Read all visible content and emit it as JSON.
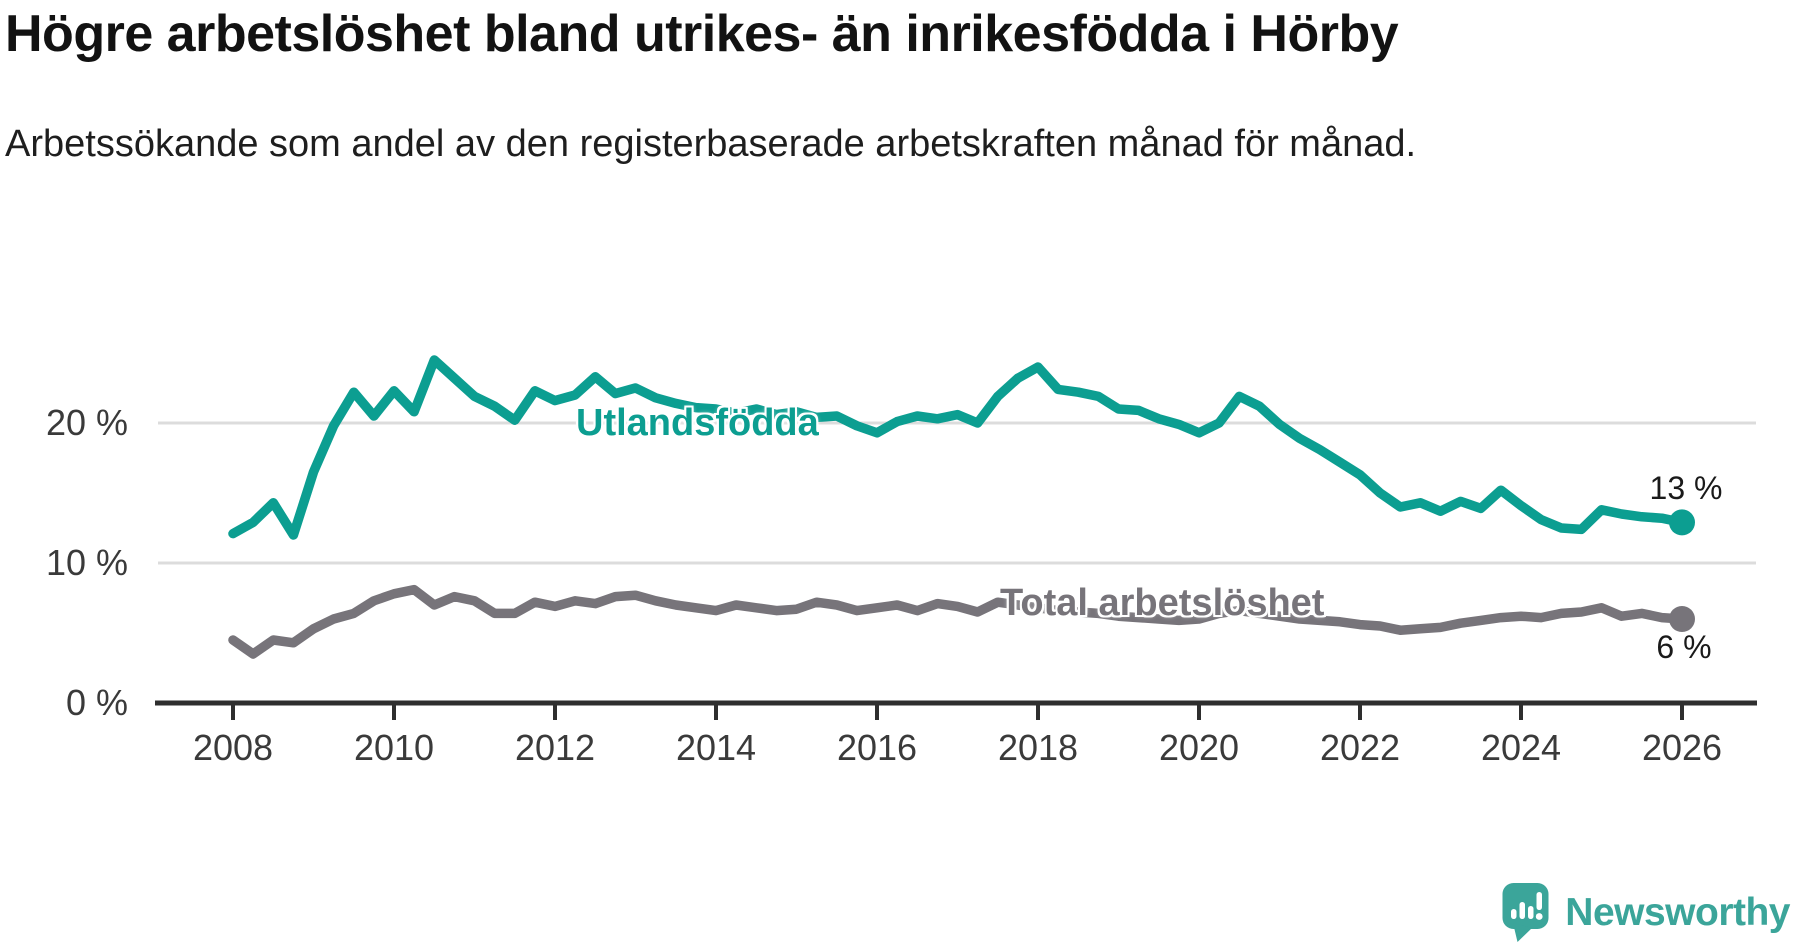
{
  "chart_data": {
    "type": "line",
    "title": "Högre arbetslöshet bland utrikes- än inrikesfödda i Hörby",
    "subtitle": "Arbetssökande som andel av den registerbaserade arbetskraften månad för månad.",
    "xlim": [
      2008,
      2026
    ],
    "ylim": [
      0,
      26.5
    ],
    "grid": "horizontal",
    "legend": "inline-labels-on-lines",
    "x_ticks": [
      2008,
      2010,
      2012,
      2014,
      2016,
      2018,
      2020,
      2022,
      2024,
      2026
    ],
    "y_ticks": [
      {
        "value": 20,
        "label": "20 %"
      },
      {
        "value": 10,
        "label": "10 %"
      },
      {
        "value": 0,
        "label": "0 %"
      }
    ],
    "x": [
      2008.0,
      2008.25,
      2008.5,
      2008.75,
      2009.0,
      2009.25,
      2009.5,
      2009.75,
      2010.0,
      2010.25,
      2010.5,
      2010.75,
      2011.0,
      2011.25,
      2011.5,
      2011.75,
      2012.0,
      2012.25,
      2012.5,
      2012.75,
      2013.0,
      2013.25,
      2013.5,
      2013.75,
      2014.0,
      2014.25,
      2014.5,
      2014.75,
      2015.0,
      2015.25,
      2015.5,
      2015.75,
      2016.0,
      2016.25,
      2016.5,
      2016.75,
      2017.0,
      2017.25,
      2017.5,
      2017.75,
      2018.0,
      2018.25,
      2018.5,
      2018.75,
      2019.0,
      2019.25,
      2019.5,
      2019.75,
      2020.0,
      2020.25,
      2020.5,
      2020.75,
      2021.0,
      2021.25,
      2021.5,
      2021.75,
      2022.0,
      2022.25,
      2022.5,
      2022.75,
      2023.0,
      2023.25,
      2023.5,
      2023.75,
      2024.0,
      2024.25,
      2024.5,
      2024.75,
      2025.0,
      2025.25,
      2025.5,
      2025.75,
      2026.0
    ],
    "series": [
      {
        "name": "Utlandsfödda",
        "color": "#0c9e91",
        "end_label": "13 %",
        "end_value": 13,
        "values": [
          12.1,
          12.9,
          14.3,
          12.0,
          16.5,
          19.8,
          22.2,
          20.5,
          22.3,
          20.8,
          24.5,
          23.2,
          21.9,
          21.2,
          20.2,
          22.3,
          21.6,
          22.0,
          23.3,
          22.1,
          22.5,
          21.8,
          21.4,
          21.1,
          21.0,
          20.7,
          21.0,
          20.6,
          20.8,
          20.4,
          20.5,
          19.8,
          19.3,
          20.1,
          20.5,
          20.3,
          20.6,
          20.0,
          21.9,
          23.2,
          24.0,
          22.4,
          22.2,
          21.9,
          21.0,
          20.9,
          20.3,
          19.9,
          19.3,
          20.0,
          21.9,
          21.2,
          19.9,
          18.9,
          18.1,
          17.2,
          16.3,
          15.0,
          14.0,
          14.3,
          13.7,
          14.4,
          13.9,
          15.2,
          14.1,
          13.1,
          12.5,
          12.4,
          13.8,
          13.5,
          13.3,
          13.2,
          12.9
        ]
      },
      {
        "name": "Total arbetslöshet",
        "color": "#77747a",
        "end_label": "6 %",
        "end_value": 6,
        "values": [
          4.5,
          3.5,
          4.5,
          4.3,
          5.3,
          6.0,
          6.4,
          7.3,
          7.8,
          8.1,
          7.0,
          7.6,
          7.3,
          6.4,
          6.4,
          7.2,
          6.9,
          7.3,
          7.1,
          7.6,
          7.7,
          7.3,
          7.0,
          6.8,
          6.6,
          7.0,
          6.8,
          6.6,
          6.7,
          7.2,
          7.0,
          6.6,
          6.8,
          7.0,
          6.6,
          7.1,
          6.9,
          6.5,
          7.2,
          7.0,
          6.8,
          6.6,
          6.5,
          6.4,
          6.2,
          6.1,
          6.0,
          5.9,
          6.0,
          6.4,
          6.6,
          6.4,
          6.2,
          6.0,
          5.9,
          5.8,
          5.6,
          5.5,
          5.2,
          5.3,
          5.4,
          5.7,
          5.9,
          6.1,
          6.2,
          6.1,
          6.4,
          6.5,
          6.8,
          6.2,
          6.4,
          6.1,
          6.0
        ]
      }
    ]
  },
  "colors": {
    "teal_series": "#0c9e91",
    "gray_series": "#77747a",
    "axis_text": "#3a3a3a",
    "grid_line": "#dcdcdc",
    "axis_line": "#2e2e2e",
    "value_label": "#1a1a1a",
    "brand_teal": "#3ba59a"
  },
  "branding": {
    "logo_text": "Newsworthy",
    "logo_icon": "speech-bubble-bar-chart-exclamation"
  }
}
